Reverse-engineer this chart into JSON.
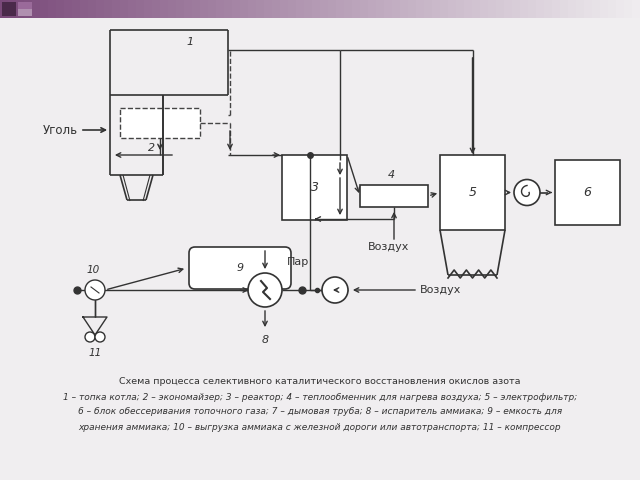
{
  "caption_lines": [
    "Схема процесса селективного каталитического восстановления окислов азота",
    "1 – топка котла; 2 – экономайзер; 3 – реактор; 4 – теплообменник для нагрева воздуха; 5 – электрофильтр;",
    "6 – блок обессеривания топочного газа; 7 – дымовая труба; 8 – испаритель аммиака; 9 – емкость для",
    "хранения аммиака; 10 – выгрузка аммиака с железной дороги или автотранспорта; 11 – компрессор"
  ],
  "bg_color": "#f0eef0",
  "line_color": "#333333",
  "dashed_color": "#444444",
  "font_size": 8.0,
  "caption_font_size": 6.8,
  "grad_left": "#7a4a7a",
  "grad_right": "#f0eef0"
}
